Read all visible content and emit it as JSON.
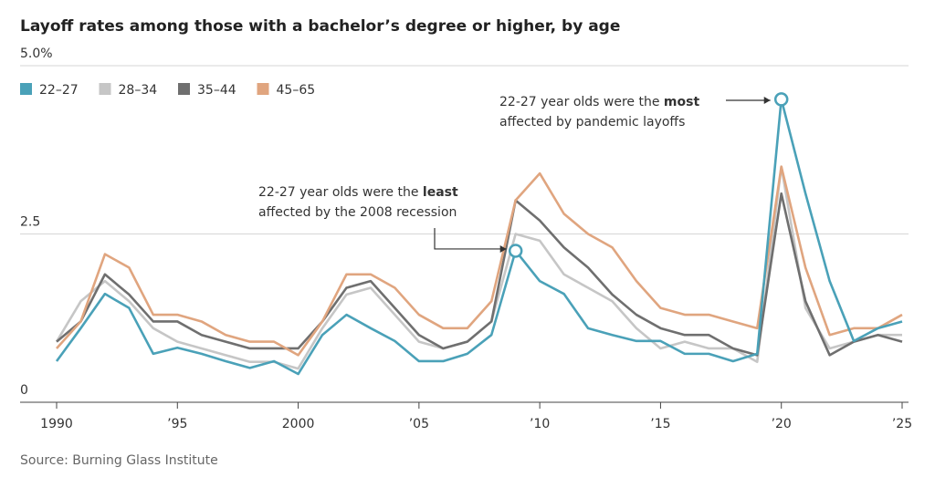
{
  "chart_data": {
    "type": "line",
    "title": "Layoff rates among those with a bachelor’s degree or higher, by age",
    "source": "Source: Burning Glass Institute",
    "x": [
      1990,
      1991,
      1992,
      1993,
      1994,
      1995,
      1996,
      1997,
      1998,
      1999,
      2000,
      2001,
      2002,
      2003,
      2004,
      2005,
      2006,
      2007,
      2008,
      2009,
      2010,
      2011,
      2012,
      2013,
      2014,
      2015,
      2016,
      2017,
      2018,
      2019,
      2020,
      2021,
      2022,
      2023,
      2024,
      2025
    ],
    "xlim": [
      1990,
      2025
    ],
    "xticks": [
      1990,
      {
        "value": 1995,
        "label": "’95"
      },
      2000,
      {
        "value": 2005,
        "label": "’05"
      },
      {
        "value": 2010,
        "label": "’10"
      },
      {
        "value": 2015,
        "label": "’15"
      },
      {
        "value": 2020,
        "label": "’20"
      },
      {
        "value": 2025,
        "label": "’25"
      }
    ],
    "ylim": [
      0,
      5
    ],
    "yticks": [
      0,
      2.5,
      {
        "value": 5,
        "label": "5.0%"
      }
    ],
    "grid": true,
    "legend": "top-left",
    "series": [
      {
        "name": "22–27",
        "color": "#4aa1b8",
        "values": [
          0.61,
          1.1,
          1.61,
          1.4,
          0.72,
          0.81,
          0.72,
          0.61,
          0.51,
          0.61,
          0.42,
          1.0,
          1.3,
          1.1,
          0.91,
          0.61,
          0.61,
          0.72,
          1.0,
          2.25,
          1.8,
          1.61,
          1.1,
          1.0,
          0.91,
          0.91,
          0.72,
          0.72,
          0.61,
          0.72,
          4.5,
          3.1,
          1.8,
          0.91,
          1.1,
          1.2
        ]
      },
      {
        "name": "28–34",
        "color": "#c6c6c6",
        "values": [
          0.9,
          1.5,
          1.8,
          1.5,
          1.1,
          0.9,
          0.8,
          0.7,
          0.6,
          0.6,
          0.5,
          1.1,
          1.6,
          1.7,
          1.3,
          0.9,
          0.8,
          0.9,
          1.2,
          2.5,
          2.4,
          1.9,
          1.7,
          1.5,
          1.1,
          0.8,
          0.9,
          0.8,
          0.8,
          0.6,
          3.5,
          1.4,
          0.8,
          0.9,
          1.0,
          1.0
        ]
      },
      {
        "name": "35–44",
        "color": "#6f6f6f",
        "values": [
          0.9,
          1.2,
          1.9,
          1.6,
          1.2,
          1.2,
          1.0,
          0.9,
          0.8,
          0.8,
          0.8,
          1.2,
          1.7,
          1.8,
          1.4,
          1.0,
          0.8,
          0.9,
          1.2,
          3.0,
          2.7,
          2.3,
          2.0,
          1.6,
          1.3,
          1.1,
          1.0,
          1.0,
          0.8,
          0.7,
          3.1,
          1.5,
          0.7,
          0.9,
          1.0,
          0.9
        ]
      },
      {
        "name": "45–65",
        "color": "#e0a57f",
        "values": [
          0.8,
          1.2,
          2.2,
          2.0,
          1.3,
          1.3,
          1.2,
          1.0,
          0.9,
          0.9,
          0.7,
          1.2,
          1.9,
          1.9,
          1.7,
          1.3,
          1.1,
          1.1,
          1.5,
          3.0,
          3.4,
          2.8,
          2.5,
          2.3,
          1.8,
          1.4,
          1.3,
          1.3,
          1.2,
          1.1,
          3.5,
          2.0,
          1.0,
          1.1,
          1.1,
          1.3
        ]
      }
    ],
    "annotations": [
      {
        "lines": [
          [
            "22-27 year olds were the ",
            "least"
          ],
          [
            "affected by the 2008 recession"
          ]
        ]
      },
      {
        "lines": [
          [
            "22-27 year olds were the ",
            "most"
          ],
          [
            "affected by pandemic layoffs"
          ]
        ]
      }
    ]
  }
}
